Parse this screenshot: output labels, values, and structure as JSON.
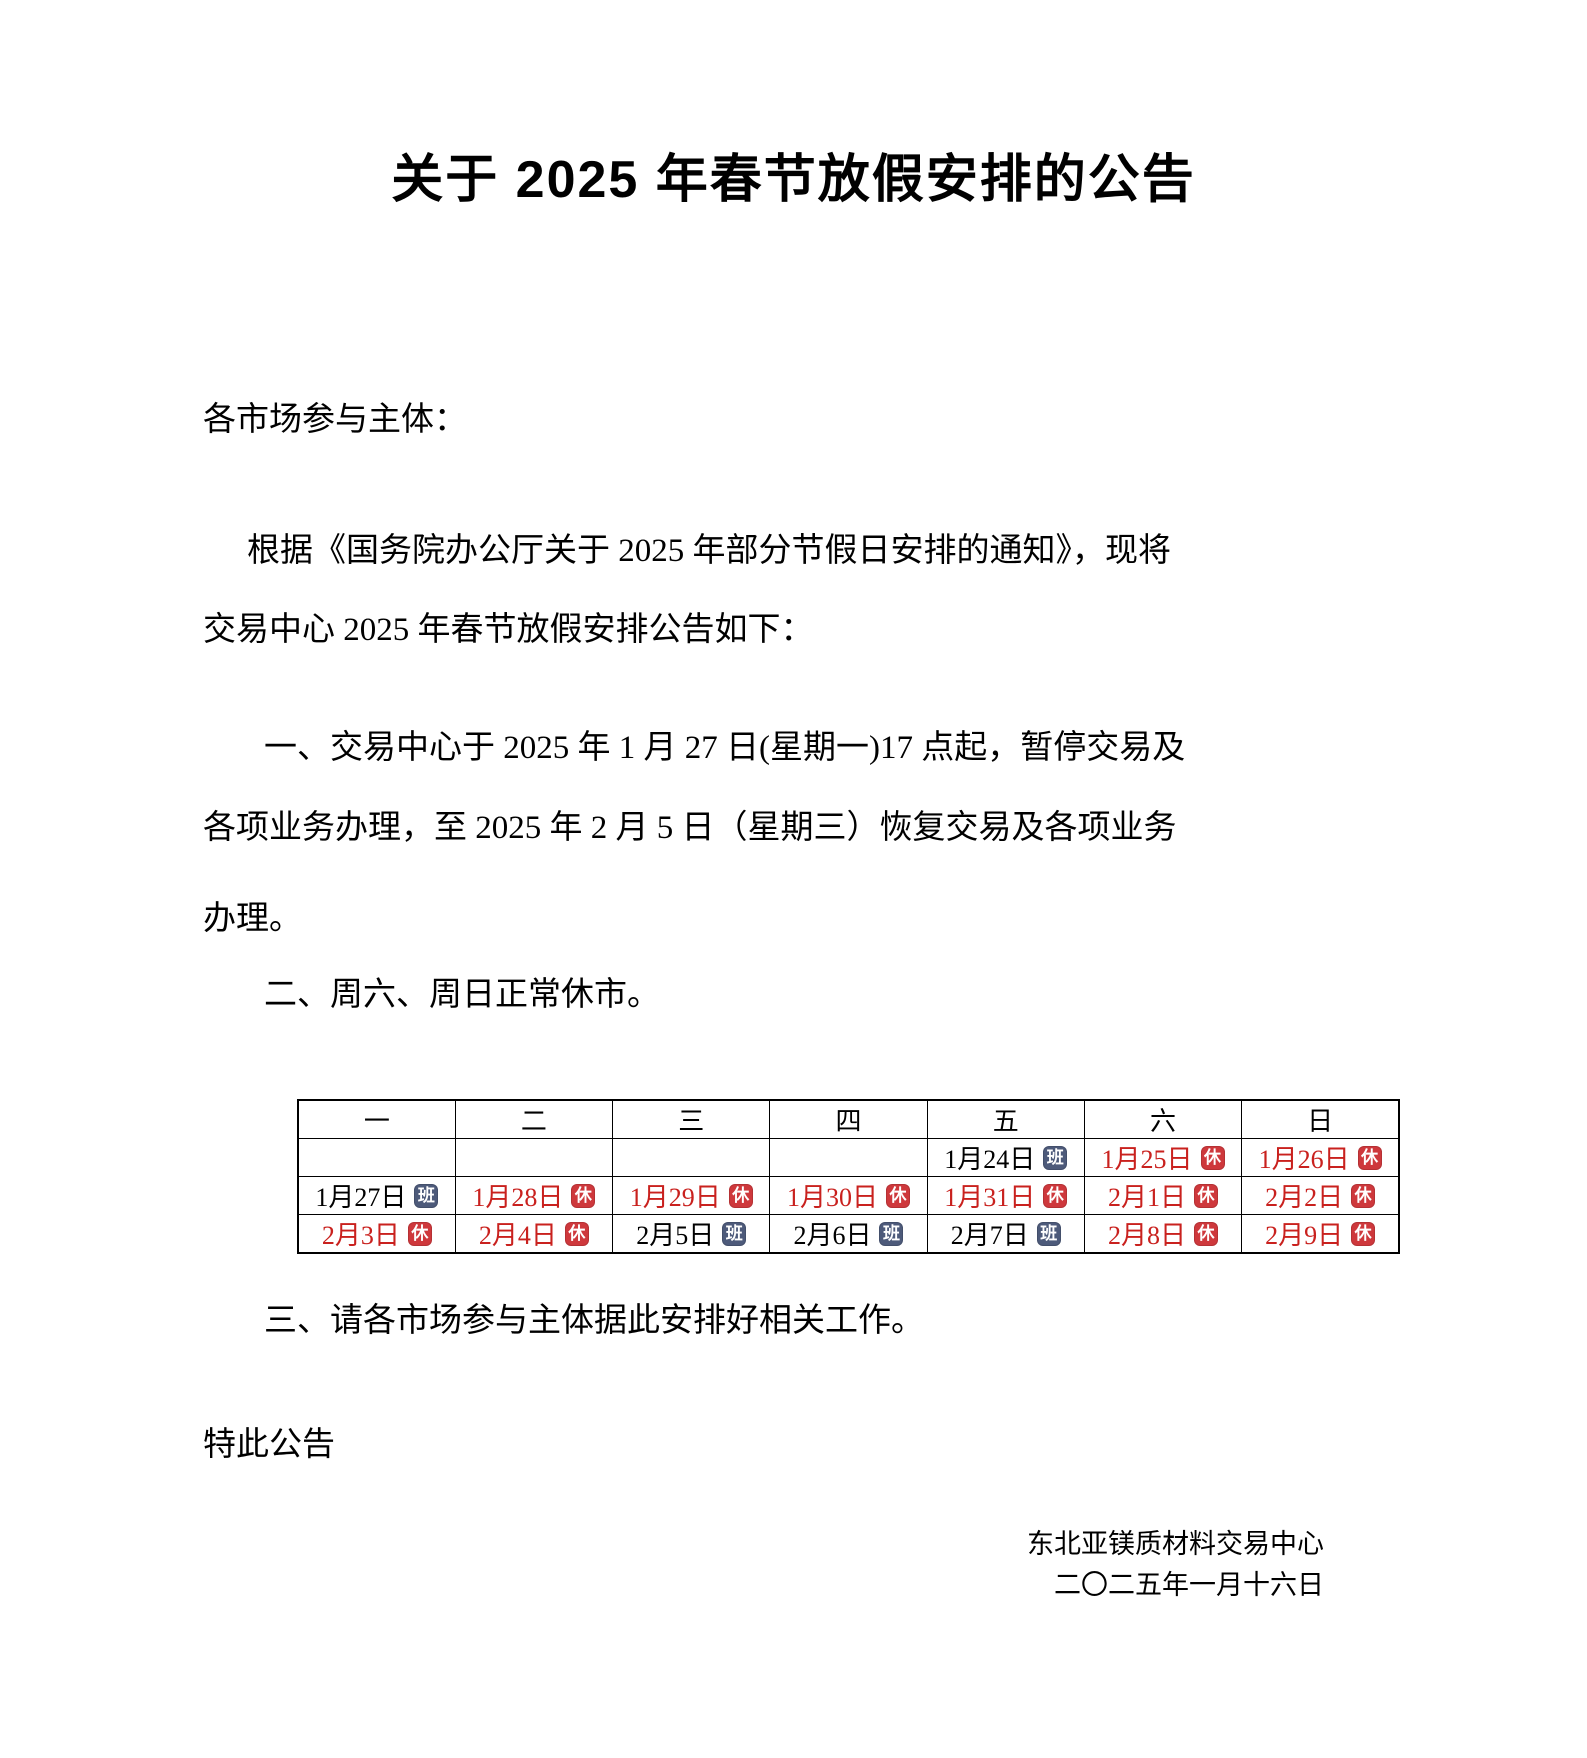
{
  "page": {
    "title": "关于 2025 年春节放假安排的公告"
  },
  "body": {
    "salutation": "各市场参与主体：",
    "p1_line1": "根据《国务院办公厅关于 2025 年部分节假日安排的通知》，现将",
    "p1_line2": "交易中心 2025 年春节放假安排公告如下：",
    "p2_line1": "一、交易中心于 2025 年 1 月 27 日(星期一)17 点起，暂停交易及",
    "p2_line2": "各项业务办理，至 2025 年 2 月 5 日（星期三）恢复交易及各项业务",
    "p2_line3": "办理。",
    "p3": "二、周六、周日正常休市。",
    "p4": "三、请各市场参与主体据此安排好相关工作。",
    "closing": "特此公告"
  },
  "calendar": {
    "weekday_headers": [
      "一",
      "二",
      "三",
      "四",
      "五",
      "六",
      "日"
    ],
    "rows": [
      [
        {
          "date": "",
          "badge": ""
        },
        {
          "date": "",
          "badge": ""
        },
        {
          "date": "",
          "badge": ""
        },
        {
          "date": "",
          "badge": ""
        },
        {
          "date": "1月24日",
          "badge": "班"
        },
        {
          "date": "1月25日",
          "badge": "休"
        },
        {
          "date": "1月26日",
          "badge": "休"
        }
      ],
      [
        {
          "date": "1月27日",
          "badge": "班"
        },
        {
          "date": "1月28日",
          "badge": "休"
        },
        {
          "date": "1月29日",
          "badge": "休"
        },
        {
          "date": "1月30日",
          "badge": "休"
        },
        {
          "date": "1月31日",
          "badge": "休"
        },
        {
          "date": "2月1日",
          "badge": "休"
        },
        {
          "date": "2月2日",
          "badge": "休"
        }
      ],
      [
        {
          "date": "2月3日",
          "badge": "休"
        },
        {
          "date": "2月4日",
          "badge": "休"
        },
        {
          "date": "2月5日",
          "badge": "班"
        },
        {
          "date": "2月6日",
          "badge": "班"
        },
        {
          "date": "2月7日",
          "badge": "班"
        },
        {
          "date": "2月8日",
          "badge": "休"
        },
        {
          "date": "2月9日",
          "badge": "休"
        }
      ]
    ]
  },
  "signature": {
    "org": "东北亚镁质材料交易中心",
    "date": "二〇二五年一月十六日"
  },
  "colors": {
    "rest_red": "#ce383c",
    "work_slate": "#4d5a7a",
    "rest_date_text": "#c9211e",
    "text": "#000000",
    "background": "#ffffff"
  }
}
